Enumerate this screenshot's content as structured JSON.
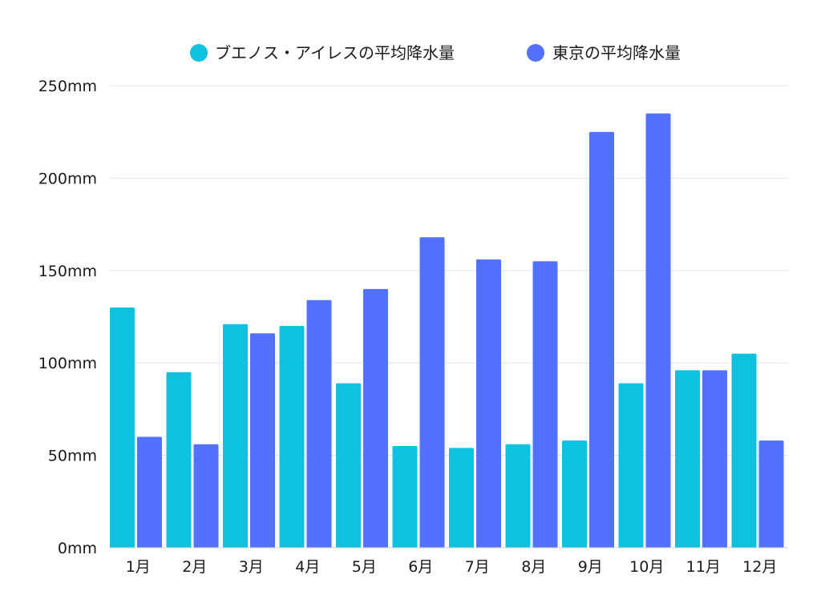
{
  "chart_data": {
    "type": "bar",
    "title": "",
    "xlabel": "",
    "ylabel": "",
    "categories": [
      "1月",
      "2月",
      "3月",
      "4月",
      "5月",
      "6月",
      "7月",
      "8月",
      "9月",
      "10月",
      "11月",
      "12月"
    ],
    "series": [
      {
        "name": "ブエノス・アイレスの平均降水量",
        "color": "#0ec1df",
        "values": [
          130,
          95,
          121,
          120,
          89,
          55,
          54,
          56,
          58,
          89,
          96,
          105
        ]
      },
      {
        "name": "東京の平均降水量",
        "color": "#5271ff",
        "values": [
          60,
          56,
          116,
          134,
          140,
          168,
          156,
          155,
          225,
          235,
          96,
          58
        ]
      }
    ],
    "ylim": [
      0,
      250
    ],
    "yticks": [
      {
        "value": 0,
        "label": "0mm"
      },
      {
        "value": 50,
        "label": "50mm"
      },
      {
        "value": 100,
        "label": "100mm"
      },
      {
        "value": 150,
        "label": "150mm"
      },
      {
        "value": 200,
        "label": "200mm"
      },
      {
        "value": 250,
        "label": "250mm"
      }
    ],
    "grid": true,
    "legend_position": "top-center"
  }
}
